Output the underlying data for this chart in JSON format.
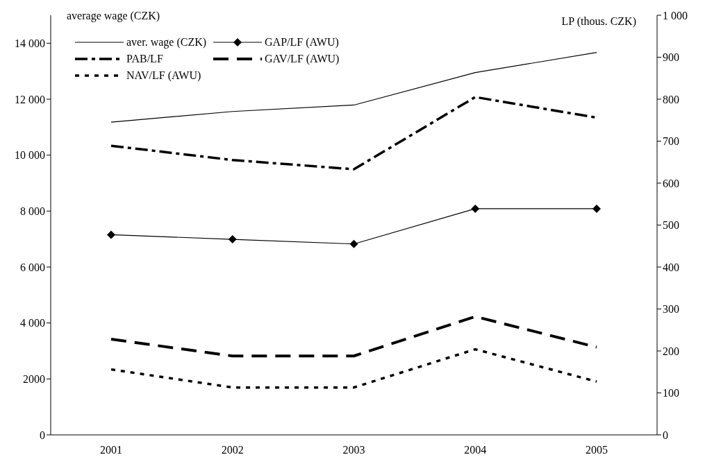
{
  "chart_data": {
    "type": "line",
    "ylabel": "average wage (CZK)",
    "y2label": "LP (thous. CZK)",
    "categories": [
      "2001",
      "2002",
      "2003",
      "2004",
      "2005"
    ],
    "series": [
      {
        "name": "aver. wage (CZK)",
        "color": "#000000",
        "values": [
          11180,
          11560,
          11790,
          12950,
          13670
        ],
        "line_style": "solid",
        "marker": "none"
      },
      {
        "name": "GAP/LF (AWU)",
        "color": "#000000",
        "values": [
          477,
          466,
          455,
          539,
          539
        ],
        "axis": "y2",
        "line_style": "solid",
        "marker": "diamond"
      },
      {
        "name": "PAB/LF",
        "color": "#000000",
        "values": [
          689,
          655,
          633,
          805,
          756
        ],
        "axis": "y2",
        "line_style": "dashdot",
        "marker": "none"
      },
      {
        "name": "GAV/LF (AWU)",
        "color": "#000000",
        "values": [
          228,
          188,
          188,
          282,
          209
        ],
        "axis": "y2",
        "line_style": "dashed",
        "marker": "none"
      },
      {
        "name": "NAV/LF (AWU)",
        "color": "#000000",
        "values": [
          156,
          113,
          113,
          204,
          127
        ],
        "axis": "y2",
        "line_style": "dotted",
        "marker": "none"
      }
    ],
    "ylim": [
      0,
      15000
    ],
    "yticks": [
      0,
      {
        "value": 2000,
        "label": "2000"
      },
      {
        "value": 4000,
        "label": "4 000"
      },
      {
        "value": 6000,
        "label": "6 000"
      },
      {
        "value": 8000,
        "label": "8 000"
      },
      {
        "value": 10000,
        "label": "10 000"
      },
      {
        "value": 12000,
        "label": "12 000"
      },
      {
        "value": 14000,
        "label": "14 000"
      }
    ],
    "y2lim": [
      0,
      1000
    ],
    "y2ticks": [
      0,
      100,
      200,
      300,
      400,
      500,
      600,
      700,
      800,
      900,
      {
        "value": 1000,
        "label": "1 000"
      }
    ],
    "grid": false,
    "legend": "top left"
  }
}
